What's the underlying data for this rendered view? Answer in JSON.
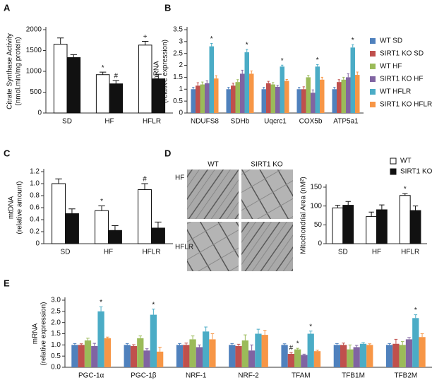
{
  "chart_data": [
    {
      "type": "bar",
      "panel": "A",
      "ylabel": [
        "Citrate Synthase Activity",
        "(nmol.min/mg protein)"
      ],
      "categories": [
        "SD",
        "HF",
        "HFLR"
      ],
      "bar_outline": true,
      "series": [
        {
          "color": "#ffffff",
          "values": [
            1650,
            920,
            1630
          ],
          "errors": [
            150,
            60,
            90
          ],
          "annotations": [
            null,
            "*",
            "+"
          ]
        },
        {
          "color": "#111111",
          "values": [
            1330,
            700,
            820
          ],
          "errors": [
            70,
            80,
            110
          ],
          "annotations": [
            null,
            "#",
            null
          ]
        }
      ],
      "ylim": [
        0,
        2000
      ],
      "yticks": [
        0,
        500,
        1000,
        1500,
        2000
      ]
    },
    {
      "type": "bar",
      "panel": "B",
      "ylabel": [
        "mRNA",
        "(relative expression)"
      ],
      "categories": [
        "NDUFS8",
        "SDHb",
        "Uqcrc1",
        "COX5b",
        "ATP5a1"
      ],
      "legend": "right",
      "series": [
        {
          "name": "WT SD",
          "color": "#4f81bd",
          "values": [
            1.0,
            1.0,
            1.0,
            1.0,
            1.0
          ],
          "errors": [
            0.08,
            0.08,
            0.08,
            0.08,
            0.08
          ]
        },
        {
          "name": "SIRT1 KO SD",
          "color": "#c0504d",
          "values": [
            1.15,
            1.15,
            1.25,
            1.0,
            1.3
          ],
          "errors": [
            0.12,
            0.1,
            0.08,
            0.1,
            0.1
          ]
        },
        {
          "name": "WT HF",
          "color": "#9bbb59",
          "values": [
            1.2,
            1.3,
            1.2,
            1.5,
            1.4
          ],
          "errors": [
            0.1,
            0.1,
            0.08,
            0.08,
            0.1
          ]
        },
        {
          "name": "SIRT1 KO HF",
          "color": "#8064a2",
          "values": [
            1.25,
            1.65,
            1.1,
            0.85,
            1.5
          ],
          "errors": [
            0.1,
            0.15,
            0.06,
            0.12,
            0.15
          ]
        },
        {
          "name": "WT HFLR",
          "color": "#4bacc6",
          "values": [
            2.8,
            2.55,
            1.95,
            1.95,
            2.75
          ],
          "errors": [
            0.12,
            0.12,
            0.06,
            0.08,
            0.12
          ],
          "annotations": [
            "*",
            "*",
            "*",
            "*",
            "*"
          ]
        },
        {
          "name": "SIRT1 KO HFLR",
          "color": "#f79646",
          "values": [
            1.45,
            1.65,
            1.35,
            1.4,
            1.6
          ],
          "errors": [
            0.12,
            0.12,
            0.06,
            0.1,
            0.12
          ]
        }
      ],
      "ylim": [
        0,
        3.5
      ],
      "yticks": [
        0,
        0.5,
        1,
        1.5,
        2,
        2.5,
        3,
        3.5
      ]
    },
    {
      "type": "bar",
      "panel": "C",
      "ylabel": [
        "mtDNA",
        "(relative amount)"
      ],
      "categories": [
        "SD",
        "HF",
        "HFLR"
      ],
      "bar_outline": true,
      "series": [
        {
          "color": "#ffffff",
          "values": [
            1.0,
            0.55,
            0.9
          ],
          "errors": [
            0.08,
            0.08,
            0.1
          ],
          "annotations": [
            null,
            "*",
            "#"
          ]
        },
        {
          "color": "#111111",
          "values": [
            0.5,
            0.22,
            0.26
          ],
          "errors": [
            0.08,
            0.08,
            0.1
          ]
        }
      ],
      "ylim": [
        0,
        1.2
      ],
      "yticks": [
        0,
        0.2,
        0.4,
        0.6,
        0.8,
        {
          "value": 1.0,
          "label": "1.0"
        },
        1.2
      ]
    },
    {
      "type": "bar",
      "panel": "D",
      "ylabel": [
        "Mitochondrial Area (nM²)"
      ],
      "image_columns": [
        "WT",
        "SIRT1 KO"
      ],
      "image_rows": [
        "HF",
        "HFLR"
      ],
      "categories": [
        "SD",
        "HF",
        "HFLR"
      ],
      "bar_outline": true,
      "legend": "top-right",
      "series": [
        {
          "name": "WT",
          "color": "#ffffff",
          "values": [
            95,
            72,
            128
          ],
          "errors": [
            7,
            12,
            5
          ],
          "annotations": [
            null,
            null,
            "*"
          ]
        },
        {
          "name": "SIRT1 KO",
          "color": "#111111",
          "values": [
            102,
            90,
            88
          ],
          "errors": [
            10,
            13,
            12
          ]
        }
      ],
      "ylim": [
        0,
        150
      ],
      "yticks": [
        0,
        50,
        100,
        150
      ]
    },
    {
      "type": "bar",
      "panel": "E",
      "ylabel": [
        "mRNA",
        "(relative expression)"
      ],
      "categories": [
        "PGC-1α",
        "PGC-1β",
        "NRF-1",
        "NRF-2",
        "TFAM",
        "TFB1M",
        "TFB2M"
      ],
      "series": [
        {
          "color": "#4f81bd",
          "values": [
            1.0,
            1.0,
            1.0,
            1.0,
            1.0,
            1.0,
            1.0
          ],
          "errors": [
            0.06,
            0.06,
            0.06,
            0.06,
            0.05,
            0.06,
            0.06
          ]
        },
        {
          "color": "#c0504d",
          "values": [
            1.0,
            0.95,
            1.0,
            0.95,
            0.6,
            1.0,
            1.05
          ],
          "errors": [
            0.05,
            0.06,
            0.08,
            0.08,
            0.06,
            0.08,
            0.2
          ],
          "annotations": [
            null,
            null,
            null,
            null,
            "#",
            null,
            null
          ]
        },
        {
          "color": "#9bbb59",
          "values": [
            1.2,
            1.3,
            1.25,
            1.2,
            0.8,
            0.8,
            1.0
          ],
          "errors": [
            0.1,
            0.1,
            0.15,
            0.25,
            0.05,
            0.2,
            0.15
          ],
          "annotations": [
            null,
            null,
            null,
            null,
            "*",
            null,
            null
          ]
        },
        {
          "color": "#8064a2",
          "values": [
            0.95,
            0.75,
            0.9,
            0.75,
            0.55,
            0.9,
            1.25
          ],
          "errors": [
            0.12,
            0.08,
            0.1,
            0.25,
            0.04,
            0.08,
            0.08
          ]
        },
        {
          "color": "#4bacc6",
          "values": [
            2.5,
            2.35,
            1.6,
            1.5,
            1.5,
            1.05,
            2.2
          ],
          "errors": [
            0.2,
            0.25,
            0.2,
            0.2,
            0.12,
            0.05,
            0.15
          ],
          "annotations": [
            "*",
            "*",
            null,
            null,
            "*",
            null,
            "*"
          ]
        },
        {
          "color": "#f79646",
          "values": [
            1.3,
            0.7,
            1.25,
            1.45,
            0.72,
            1.0,
            1.35
          ],
          "errors": [
            0.05,
            0.2,
            0.25,
            0.2,
            0.04,
            0.05,
            0.15
          ]
        }
      ],
      "ylim": [
        0,
        3.0
      ],
      "yticks": [
        {
          "value": 0,
          "label": "0.0"
        },
        0.5,
        {
          "value": 1.0,
          "label": "1.0"
        },
        1.5,
        {
          "value": 2.0,
          "label": "2.0"
        },
        2.5,
        {
          "value": 3.0,
          "label": "3.0"
        }
      ]
    }
  ]
}
